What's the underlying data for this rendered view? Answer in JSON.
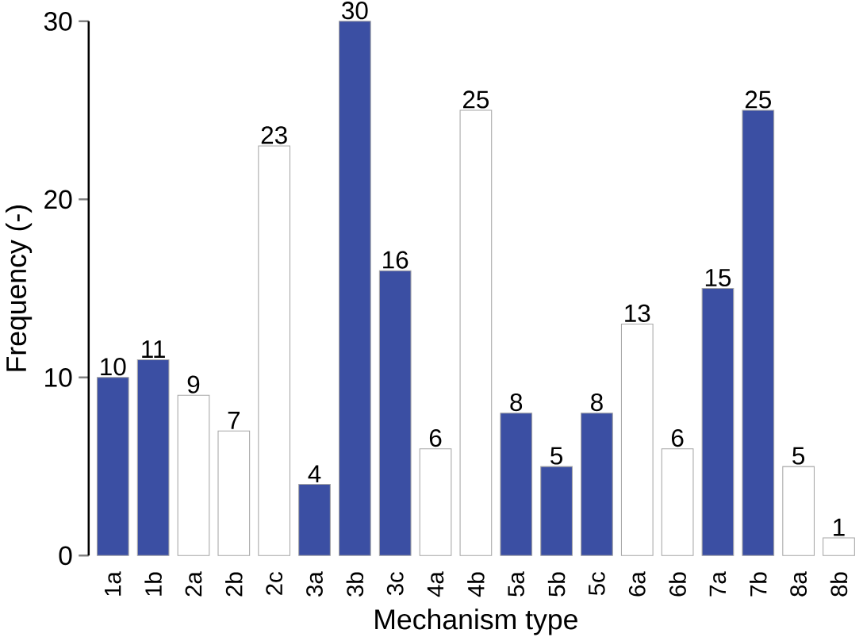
{
  "chart_data": {
    "type": "bar",
    "xlabel": "Mechanism type",
    "ylabel": "Frequency (-)",
    "categories": [
      "1a",
      "1b",
      "2a",
      "2b",
      "2c",
      "3a",
      "3b",
      "3c",
      "4a",
      "4b",
      "5a",
      "5b",
      "5c",
      "6a",
      "6b",
      "7a",
      "7b",
      "8a",
      "8b"
    ],
    "values": [
      10,
      11,
      9,
      7,
      23,
      4,
      30,
      16,
      6,
      25,
      8,
      5,
      8,
      13,
      6,
      15,
      25,
      5,
      1
    ],
    "colors": [
      "#3b4fa3",
      "#3b4fa3",
      "#ffffff",
      "#ffffff",
      "#ffffff",
      "#3b4fa3",
      "#3b4fa3",
      "#3b4fa3",
      "#ffffff",
      "#ffffff",
      "#3b4fa3",
      "#3b4fa3",
      "#3b4fa3",
      "#ffffff",
      "#ffffff",
      "#3b4fa3",
      "#3b4fa3",
      "#ffffff",
      "#ffffff"
    ],
    "ylim": [
      0,
      30
    ],
    "yticks": [
      0,
      10,
      20,
      30
    ],
    "data_labels": true,
    "grid": false
  }
}
